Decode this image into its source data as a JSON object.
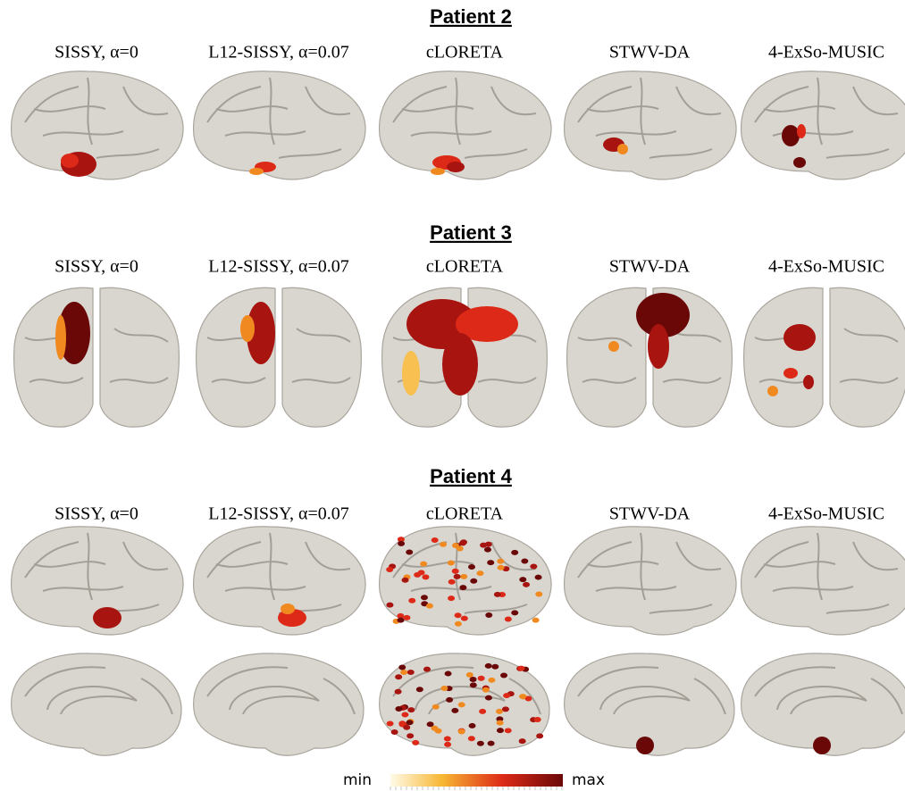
{
  "panels": [
    {
      "title": "Patient 2",
      "columns": [
        "SISSY, α=0",
        "L12-SISSY, α=0.07",
        "cLORETA",
        "STWV-DA",
        "4-ExSo-MUSIC"
      ]
    },
    {
      "title": "Patient 3",
      "columns": [
        "SISSY, α=0",
        "L12-SISSY, α=0.07",
        "cLORETA",
        "STWV-DA",
        "4-ExSo-MUSIC"
      ]
    },
    {
      "title": "Patient 4",
      "columns": [
        "SISSY, α=0",
        "L12-SISSY, α=0.07",
        "cLORETA",
        "STWV-DA",
        "4-ExSo-MUSIC"
      ]
    }
  ],
  "colorbar": {
    "min_label": "min",
    "max_label": "max"
  }
}
